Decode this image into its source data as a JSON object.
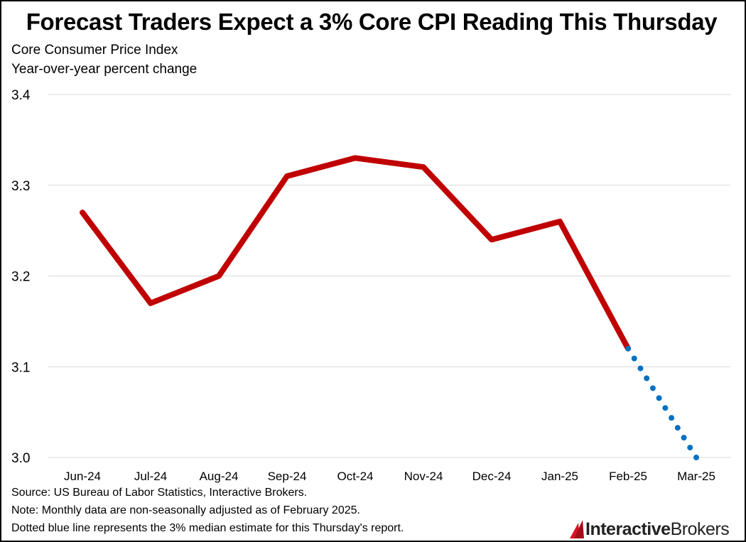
{
  "header": {
    "title": "Forecast Traders Expect a 3% Core CPI Reading This Thursday",
    "subtitle_line1": "Core Consumer Price Index",
    "subtitle_line2": "Year-over-year percent change"
  },
  "footer": {
    "source": "Source: US Bureau of Labor Statistics, Interactive Brokers.",
    "note": "Note: Monthly data are non-seasonally adjusted as of February 2025.",
    "dotted_note": "Dotted blue line represents the 3% median estimate for this Thursday's report.",
    "logo_bold": "Interactive",
    "logo_regular": "Brokers"
  },
  "chart_data": {
    "type": "line",
    "categories": [
      "Jun-24",
      "Jul-24",
      "Aug-24",
      "Sep-24",
      "Oct-24",
      "Nov-24",
      "Dec-24",
      "Jan-25",
      "Feb-25",
      "Mar-25"
    ],
    "yticks": [
      "3.0",
      "3.1",
      "3.2",
      "3.3",
      "3.4"
    ],
    "ylim": [
      3.0,
      3.4
    ],
    "grid": true,
    "series": [
      {
        "values": [
          3.27,
          3.17,
          3.2,
          3.31,
          3.33,
          3.32,
          3.24,
          3.26,
          3.12,
          null
        ],
        "color": "#c00000",
        "style": "solid"
      },
      {
        "values": [
          null,
          null,
          null,
          null,
          null,
          null,
          null,
          null,
          3.12,
          3.0
        ],
        "color": "#0070c0",
        "style": "dotted"
      }
    ]
  }
}
